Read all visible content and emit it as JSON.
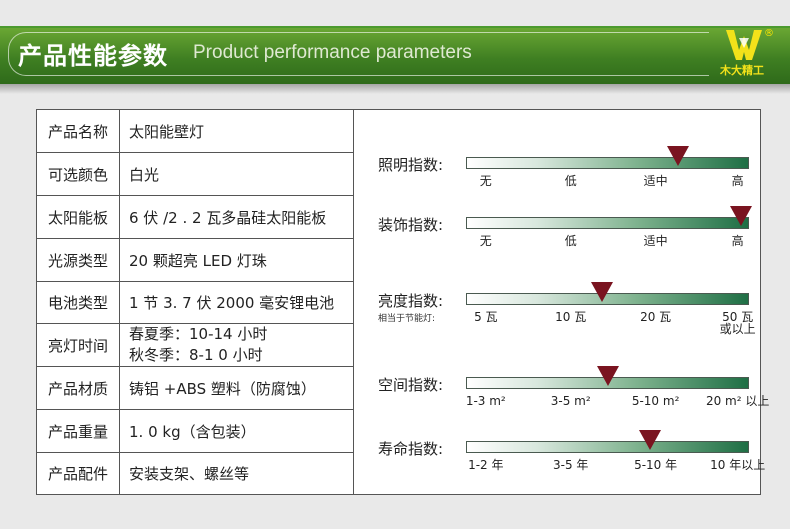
{
  "header": {
    "title_cn": "产品性能参数",
    "title_en": "Product performance parameters",
    "logo_text": "木大精工",
    "logo_reg": "®",
    "brand_color": "#3f7f22"
  },
  "specs": [
    {
      "label": "产品名称",
      "value": "太阳能壁灯"
    },
    {
      "label": "可选颜色",
      "value": "白光"
    },
    {
      "label": "太阳能板",
      "value": "6 伏 /2 . 2 瓦多晶硅太阳能板"
    },
    {
      "label": "光源类型",
      "value": "20 颗超亮 LED 灯珠"
    },
    {
      "label": "电池类型",
      "value": "1 节 3. 7 伏 2000 毫安锂电池"
    },
    {
      "label": "亮灯时间",
      "value": "春夏季：10-14 小时",
      "value2": "秋冬季：8-1 0 小时"
    },
    {
      "label": "产品材质",
      "value": "铸铝 +ABS 塑料（防腐蚀）"
    },
    {
      "label": "产品重量",
      "value": "1. 0  kg（含包装）"
    },
    {
      "label": "产品配件",
      "value": "安装支架、螺丝等"
    }
  ],
  "ratings": [
    {
      "label": "照明指数:",
      "level": 0.75,
      "ticks": [
        "无",
        "低",
        "适中",
        "高"
      ]
    },
    {
      "label": "装饰指数:",
      "level": 0.97,
      "ticks": [
        "无",
        "低",
        "适中",
        "高"
      ]
    },
    {
      "label": "亮度指数:",
      "level": 0.48,
      "prefix": "相当于节能灯:",
      "ticks": [
        "5 瓦",
        "10 瓦",
        "20 瓦",
        "50 瓦\n或以上"
      ]
    },
    {
      "label": "空间指数:",
      "level": 0.5,
      "ticks": [
        "1-3 m²",
        "3-5 m²",
        "5-10 m²",
        "20 m² 以上"
      ]
    },
    {
      "label": "寿命指数:",
      "level": 0.65,
      "ticks": [
        "1-2 年",
        "3-5 年",
        "5-10 年",
        "10 年以上"
      ]
    }
  ],
  "marker_color": "#7a1420"
}
